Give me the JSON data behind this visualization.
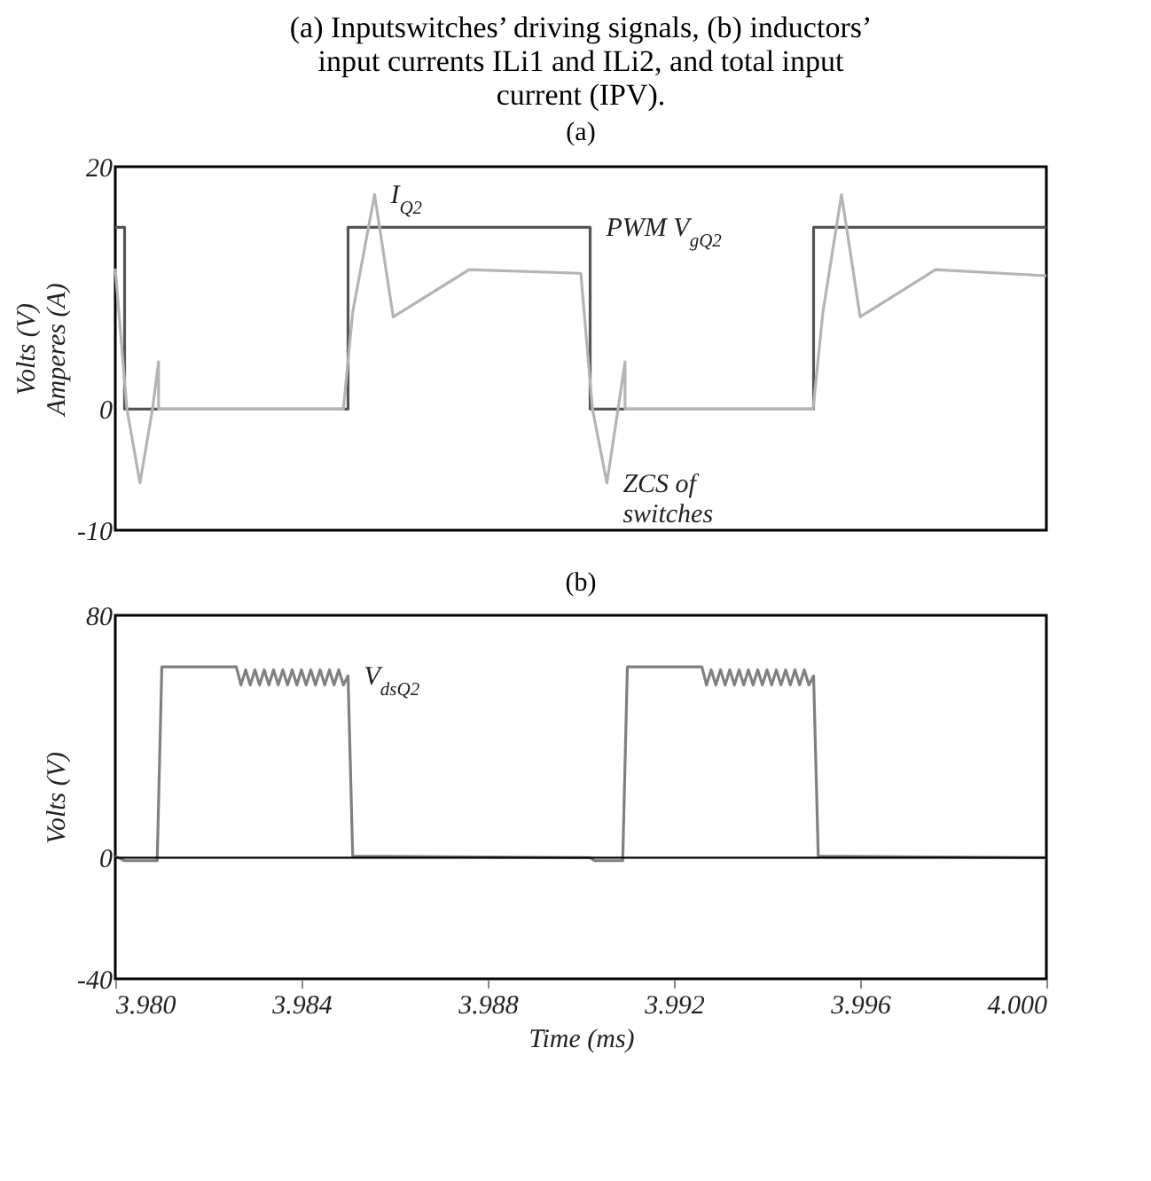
{
  "chart_data": [
    {
      "type": "line",
      "title": "(a) Inputswitches’ driving signals, (b) inductors’ input currents ILi1 and ILi2, and total input current (IPV).",
      "subtitle": "(a)",
      "ylabel": "Volts (V) Amperes (A)",
      "xlim": [
        3.98,
        4.0
      ],
      "ylim": [
        -10,
        20
      ],
      "yticks": [
        -10,
        0,
        20
      ],
      "tick_labels": "y",
      "grid": false,
      "legend": false,
      "series": [
        {
          "color": "#555555",
          "x": [
            3.98,
            3.9802,
            3.9802,
            3.985,
            3.985,
            3.9902,
            3.9902,
            3.995,
            3.995,
            4.0
          ],
          "values": [
            15,
            15,
            0,
            0,
            15,
            15,
            0,
            0,
            15,
            15
          ]
        },
        {
          "color": "#b4b4b4",
          "x": [
            3.98,
            3.98025,
            3.98053,
            3.9808,
            3.98093,
            3.98093,
            3.9849,
            3.9851,
            3.98557,
            3.98597,
            3.9876,
            3.99,
            3.99025,
            3.99056,
            3.9908,
            3.99095,
            3.99095,
            3.99499,
            3.9952,
            3.9956,
            3.996,
            3.99762,
            4.0
          ],
          "values": [
            11.6,
            0,
            -6.1,
            0,
            3.9,
            0,
            0,
            8,
            17.7,
            7.6,
            11.5,
            11.2,
            0,
            -6.1,
            0,
            3.9,
            0,
            0,
            8,
            17.7,
            7.6,
            11.5,
            11
          ]
        }
      ],
      "annotations": [
        {
          "text": "I$_{Q2}$",
          "x": 3.98557,
          "y": 17.7
        },
        {
          "text": "PWM V$_{gQ2}$",
          "x": 3.9902,
          "y": 15
        },
        {
          "text": "ZCS of switches",
          "x": 3.99056,
          "y": -6.1
        }
      ]
    },
    {
      "type": "line",
      "title": "(b)",
      "xlabel": "Time (ms)",
      "ylabel": "Volts (V)",
      "xlim": [
        3.98,
        4.0
      ],
      "xticks": [
        {
          "value": 3.98,
          "label": "3.980"
        },
        {
          "value": 3.984,
          "label": "3.984"
        },
        {
          "value": 3.988,
          "label": "3.988"
        },
        {
          "value": 3.992,
          "label": "3.992"
        },
        {
          "value": 3.996,
          "label": "3.996"
        },
        {
          "value": 4.0,
          "label": "4.000"
        }
      ],
      "ylim": [
        -40,
        80
      ],
      "yticks": [
        -40,
        0,
        80
      ],
      "grid": false,
      "legend": false,
      "series": [
        {
          "color": "#808080",
          "x": [
            3.98,
            3.9802,
            3.9809,
            3.981,
            3.9826,
            3.9827,
            3.9828,
            3.9829,
            3.983,
            3.9831,
            3.9832,
            3.9833,
            3.9834,
            3.9835,
            3.9836,
            3.9837,
            3.9838,
            3.9839,
            3.984,
            3.9841,
            3.9842,
            3.9843,
            3.9844,
            3.9845,
            3.9846,
            3.9847,
            3.9848,
            3.9849,
            3.985,
            3.9851,
            3.9902,
            3.9903,
            3.9909,
            3.991,
            3.9926,
            3.9927,
            3.9928,
            3.9929,
            3.993,
            3.9931,
            3.9932,
            3.9933,
            3.9934,
            3.9935,
            3.9936,
            3.9937,
            3.9938,
            3.9939,
            3.994,
            3.9941,
            3.9942,
            3.9943,
            3.9944,
            3.9945,
            3.9946,
            3.9947,
            3.9948,
            3.9949,
            3.995,
            3.9951,
            4.0
          ],
          "values": [
            0.5,
            -1,
            -1,
            63,
            63,
            57,
            62,
            57,
            62,
            57,
            62,
            57,
            62,
            57,
            62,
            57,
            62,
            57,
            62,
            57,
            62,
            57,
            62,
            57,
            62,
            57,
            62,
            57,
            60,
            0.5,
            0,
            -1,
            -1,
            63,
            63,
            57,
            62,
            57,
            62,
            57,
            62,
            57,
            62,
            57,
            62,
            57,
            62,
            57,
            62,
            57,
            62,
            57,
            62,
            57,
            62,
            57,
            62,
            57,
            60,
            0.5,
            0
          ]
        }
      ],
      "ref_lines": [
        {
          "axis": "y",
          "value": 0,
          "color": "#000000"
        }
      ],
      "annotations": [
        {
          "text": "V$_{dsQ2}$",
          "x": 3.985,
          "y": 60
        }
      ]
    }
  ]
}
